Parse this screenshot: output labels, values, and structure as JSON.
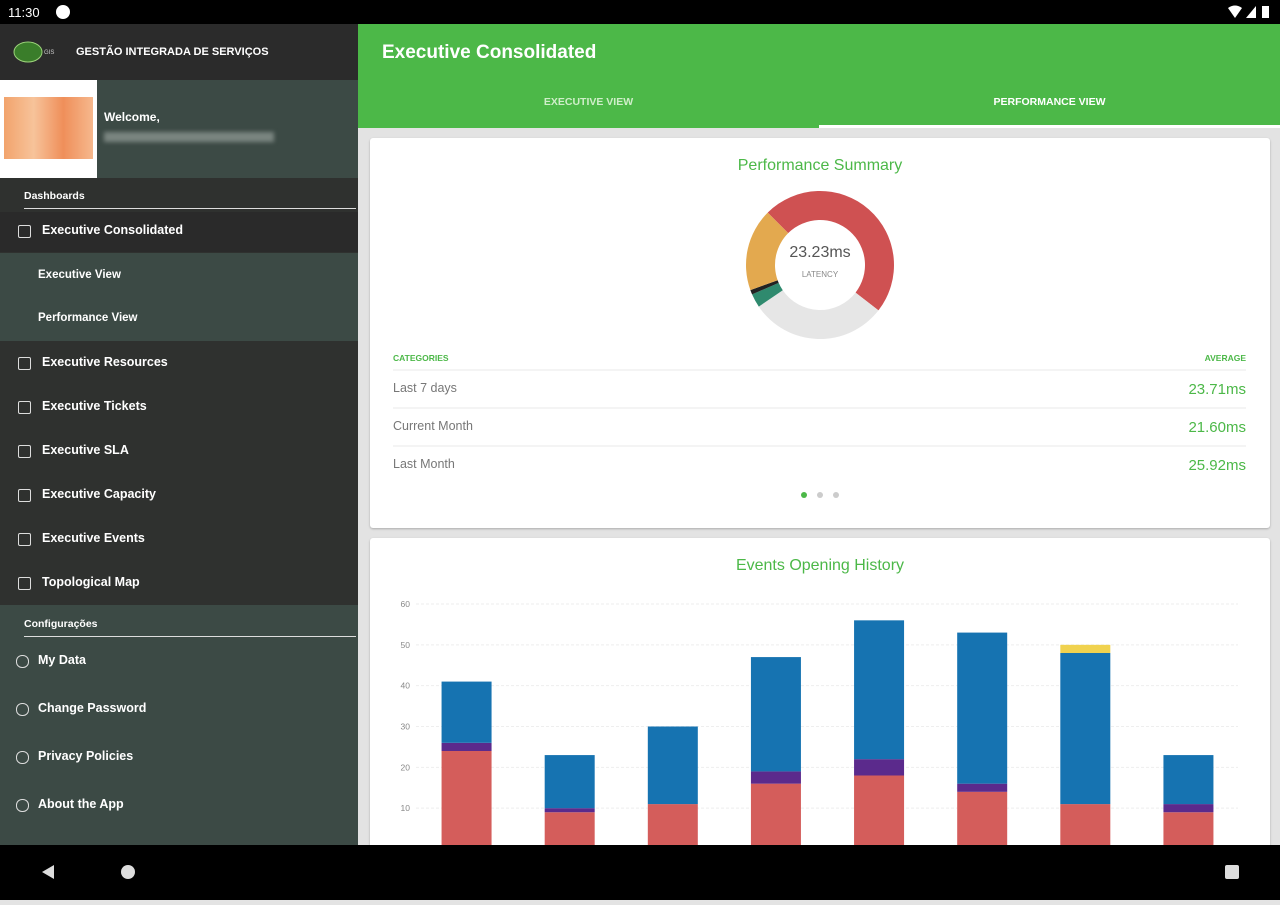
{
  "status_bar": {
    "time": "11:30"
  },
  "sidebar": {
    "app_name": "GESTÃO INTEGRADA DE SERVIÇOS",
    "welcome": "Welcome,",
    "sections": [
      {
        "title": "Dashboards",
        "items": [
          {
            "label": "Executive Consolidated",
            "selected": true,
            "subitems": [
              "Executive View",
              "Performance View"
            ]
          },
          {
            "label": "Executive Resources"
          },
          {
            "label": "Executive Tickets"
          },
          {
            "label": "Executive SLA"
          },
          {
            "label": "Executive Capacity"
          },
          {
            "label": "Executive Events"
          },
          {
            "label": "Topological Map"
          }
        ]
      },
      {
        "title": "Configurações",
        "items": [
          {
            "label": "My Data"
          },
          {
            "label": "Change Password"
          },
          {
            "label": "Privacy Policies"
          },
          {
            "label": "About the App"
          }
        ]
      }
    ]
  },
  "header": {
    "title": "Executive Consolidated",
    "tabs": [
      "EXECUTIVE VIEW",
      "PERFORMANCE VIEW"
    ],
    "active_tab": 1
  },
  "performance_summary": {
    "title": "Performance Summary",
    "donut": {
      "center_value": "23.23ms",
      "center_label": "LATENCY",
      "segments": [
        {
          "color": "#cf5152",
          "value": 48
        },
        {
          "color": "#e6e6e6",
          "value": 30
        },
        {
          "color": "#2f8a6e",
          "value": 3
        },
        {
          "color": "#222222",
          "value": 1
        },
        {
          "color": "#e3a94f",
          "value": 18
        }
      ]
    },
    "table": {
      "headers": [
        "CATEGORIES",
        "AVERAGE"
      ],
      "rows": [
        [
          "Last 7 days",
          "23.71ms"
        ],
        [
          "Current Month",
          "21.60ms"
        ],
        [
          "Last Month",
          "25.92ms"
        ]
      ]
    }
  },
  "events_history": {
    "type": "bar",
    "stacked": true,
    "title": "Events Opening History",
    "categories": [
      null,
      null,
      null,
      null,
      null,
      null,
      null,
      null
    ],
    "ylim": [
      0,
      60
    ],
    "yticks": [
      10,
      20,
      30,
      40,
      50,
      60
    ],
    "grid": true,
    "series": [
      {
        "color": "#d45d5b",
        "values": [
          24,
          9,
          11,
          16,
          18,
          14,
          11,
          9
        ]
      },
      {
        "color": "#5b2a8c",
        "values": [
          2,
          1,
          0,
          3,
          4,
          2,
          0,
          2
        ]
      },
      {
        "color": "#1673b1",
        "values": [
          15,
          13,
          19,
          28,
          34,
          37,
          37,
          12
        ]
      },
      {
        "color": "#f0d24f",
        "values": [
          0,
          0,
          0,
          0,
          0,
          0,
          2,
          0
        ]
      }
    ]
  }
}
